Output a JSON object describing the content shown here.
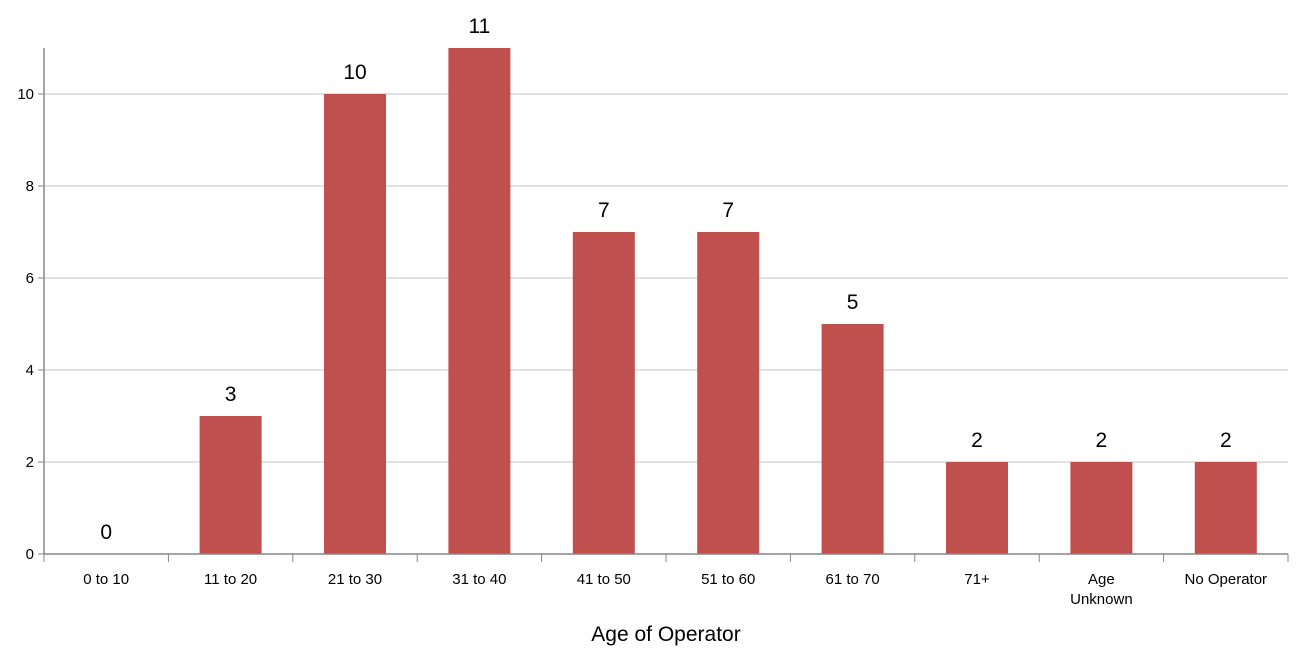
{
  "chart_data": {
    "type": "bar",
    "categories": [
      "0 to 10",
      "11 to 20",
      "21 to 30",
      "31 to 40",
      "41 to 50",
      "51 to 60",
      "61 to 70",
      "71+",
      "Age Unknown",
      "No Operator"
    ],
    "category_lines": [
      [
        "0 to 10"
      ],
      [
        "11 to 20"
      ],
      [
        "21 to 30"
      ],
      [
        "31 to 40"
      ],
      [
        "41 to 50"
      ],
      [
        "51 to 60"
      ],
      [
        "61 to 70"
      ],
      [
        "71+"
      ],
      [
        "Age",
        "Unknown"
      ],
      [
        "No Operator"
      ]
    ],
    "values": [
      0,
      3,
      10,
      11,
      7,
      7,
      5,
      2,
      2,
      2
    ],
    "title": "",
    "xlabel": "Age of Operator",
    "ylabel": "",
    "ylim": [
      0,
      11
    ],
    "yticks": [
      0,
      2,
      4,
      6,
      8,
      10
    ],
    "grid": true,
    "legend": "none",
    "bar_color": "#C0504D",
    "grid_color": "#D9D9D9",
    "axis_color": "#868686"
  }
}
